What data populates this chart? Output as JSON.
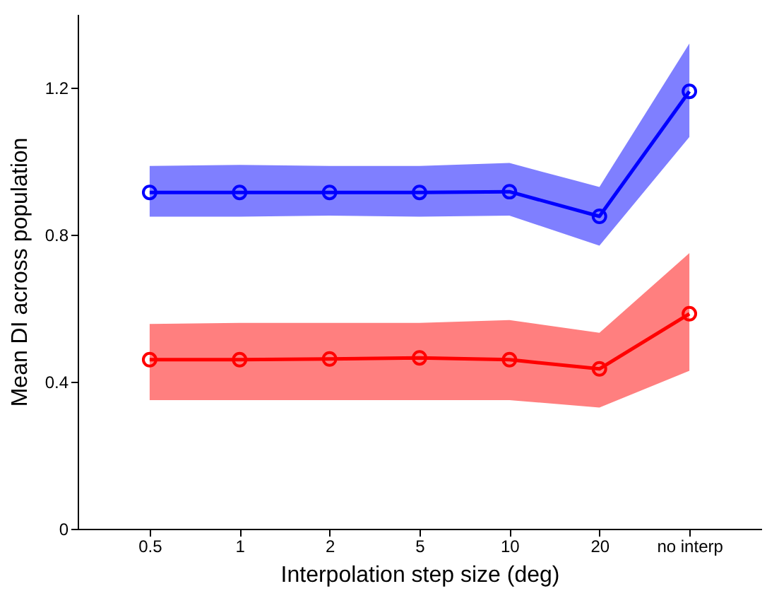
{
  "chart_data": {
    "type": "line",
    "xlabel": "Interpolation step size (deg)",
    "ylabel": "Mean DI across population",
    "categories": [
      "0.5",
      "1",
      "2",
      "5",
      "10",
      "20",
      "no interp"
    ],
    "series": [
      {
        "color": "#0000ff",
        "values": [
          0.915,
          0.915,
          0.915,
          0.915,
          0.917,
          0.85,
          1.19
        ],
        "lower": [
          0.849,
          0.849,
          0.852,
          0.849,
          0.852,
          0.77,
          1.066
        ],
        "upper": [
          0.987,
          0.99,
          0.987,
          0.987,
          0.995,
          0.93,
          1.32
        ]
      },
      {
        "color": "#ff0000",
        "values": [
          0.46,
          0.46,
          0.462,
          0.465,
          0.46,
          0.435,
          0.585
        ],
        "lower": [
          0.35,
          0.35,
          0.35,
          0.35,
          0.35,
          0.33,
          0.43
        ],
        "upper": [
          0.557,
          0.56,
          0.56,
          0.56,
          0.568,
          0.533,
          0.75
        ]
      }
    ],
    "ylim": [
      0,
      1.4
    ],
    "yticks": [
      0,
      0.4,
      0.8,
      1.2
    ],
    "grid": false,
    "marker": "circle",
    "line_style": "solid"
  }
}
